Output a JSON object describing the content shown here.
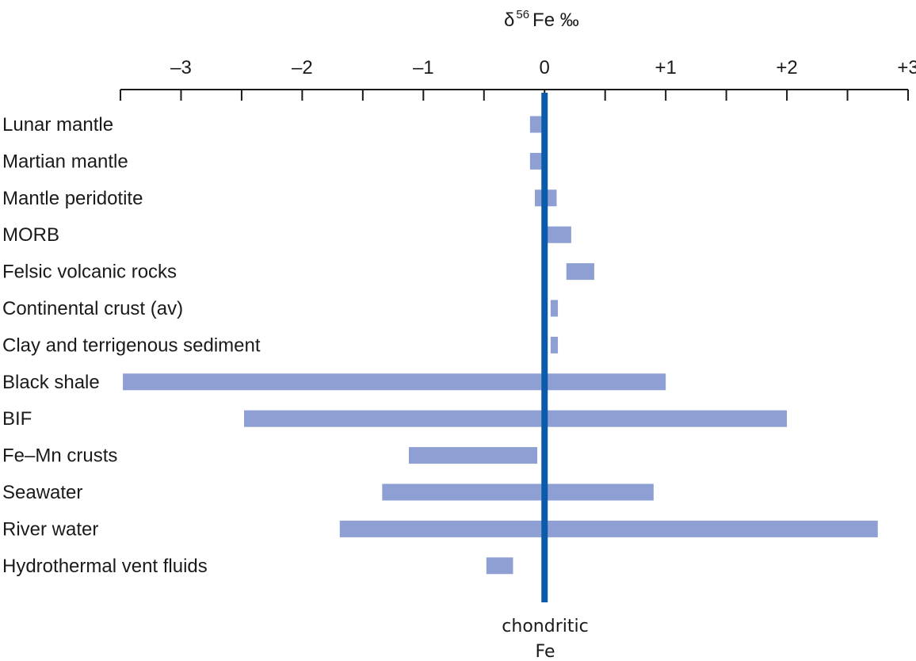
{
  "colors": {
    "bar": "#8ea0d3",
    "reference_line": "#0c5bab",
    "axis": "#1a1a1a",
    "text": "#1a1a1a"
  },
  "chart_data": {
    "type": "bar",
    "orientation": "horizontal",
    "title": {
      "prefix": "δ",
      "superscript": "56",
      "suffix": "Fe ‰"
    },
    "xlim": [
      -3.5,
      3.0
    ],
    "x_ticks": [
      {
        "value": -3,
        "label": "–3"
      },
      {
        "value": -2,
        "label": "–2"
      },
      {
        "value": -1,
        "label": "–1"
      },
      {
        "value": 0,
        "label": "0"
      },
      {
        "value": 1,
        "label": "+1"
      },
      {
        "value": 2,
        "label": "+2"
      },
      {
        "value": 3,
        "label": "+3"
      }
    ],
    "minor_ticks": [
      -3.5,
      -3,
      -2.5,
      -2,
      -1.5,
      -1,
      -0.5,
      0,
      0.5,
      1,
      1.5,
      2,
      2.5,
      3
    ],
    "axis_position": "top",
    "reference_line": {
      "value": 0.0,
      "label_line1": "chondritic",
      "label_line2": "Fe"
    },
    "categories": [
      "Lunar mantle",
      "Martian mantle",
      "Mantle peridotite",
      "MORB",
      "Felsic volcanic rocks",
      "Continental crust (av)",
      "Clay and terrigenous sediment",
      "Black shale",
      "BIF",
      "Fe–Mn crusts",
      "Seawater",
      "River water",
      "Hydrothermal vent fluids"
    ],
    "ranges": [
      [
        -0.12,
        0.02
      ],
      [
        -0.12,
        0.02
      ],
      [
        -0.08,
        0.1
      ],
      [
        0.02,
        0.22
      ],
      [
        0.18,
        0.41
      ],
      [
        0.05,
        0.11
      ],
      [
        0.05,
        0.11
      ],
      [
        -3.48,
        1.0
      ],
      [
        -2.48,
        2.0
      ],
      [
        -1.12,
        -0.06
      ],
      [
        -1.34,
        0.9
      ],
      [
        -1.69,
        2.75
      ],
      [
        -0.48,
        -0.26
      ]
    ]
  }
}
